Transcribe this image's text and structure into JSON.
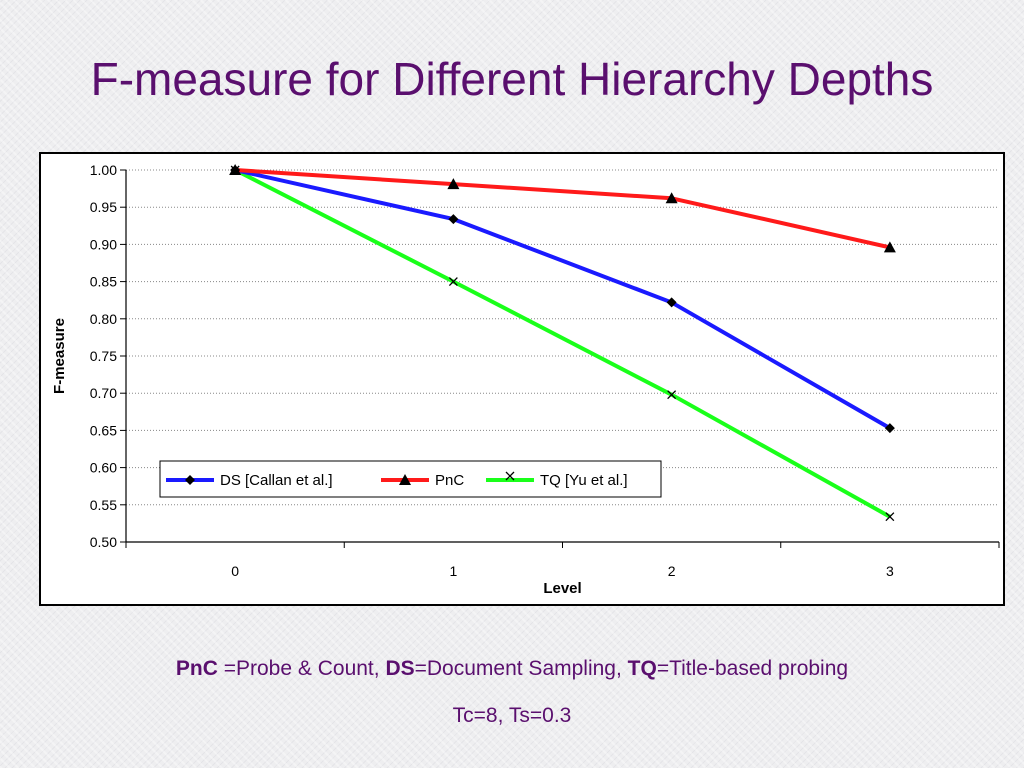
{
  "slide": {
    "title": "F-measure for Different Hierarchy Depths",
    "footnote": [
      {
        "abbr": "PnC",
        "def": " =Probe & Count,  "
      },
      {
        "abbr": "DS",
        "def": "=Document Sampling,  "
      },
      {
        "abbr": "TQ",
        "def": "=Title-based probing"
      }
    ],
    "params": "Tc=8,  Ts=0.3"
  },
  "chart_data": {
    "type": "line",
    "xlabel": "Level",
    "ylabel": "F-measure",
    "categories": [
      "0",
      "1",
      "2",
      "3"
    ],
    "ylim": [
      0.5,
      1.0
    ],
    "yticks": [
      "0.50",
      "0.55",
      "0.60",
      "0.65",
      "0.70",
      "0.75",
      "0.80",
      "0.85",
      "0.90",
      "0.95",
      "1.00"
    ],
    "grid": "horizontal",
    "legend": "inside-lower-left",
    "series": [
      {
        "name": "DS [Callan et al.]",
        "values": [
          1.0,
          0.934,
          0.822,
          0.653
        ],
        "color": "#1a1aff",
        "marker": "diamond"
      },
      {
        "name": "PnC",
        "values": [
          1.0,
          0.981,
          0.962,
          0.896
        ],
        "color": "#ff1a1a",
        "marker": "triangle"
      },
      {
        "name": "TQ [Yu et al.]",
        "values": [
          1.0,
          0.85,
          0.698,
          0.534
        ],
        "color": "#1aff1a",
        "marker": "x"
      }
    ]
  }
}
